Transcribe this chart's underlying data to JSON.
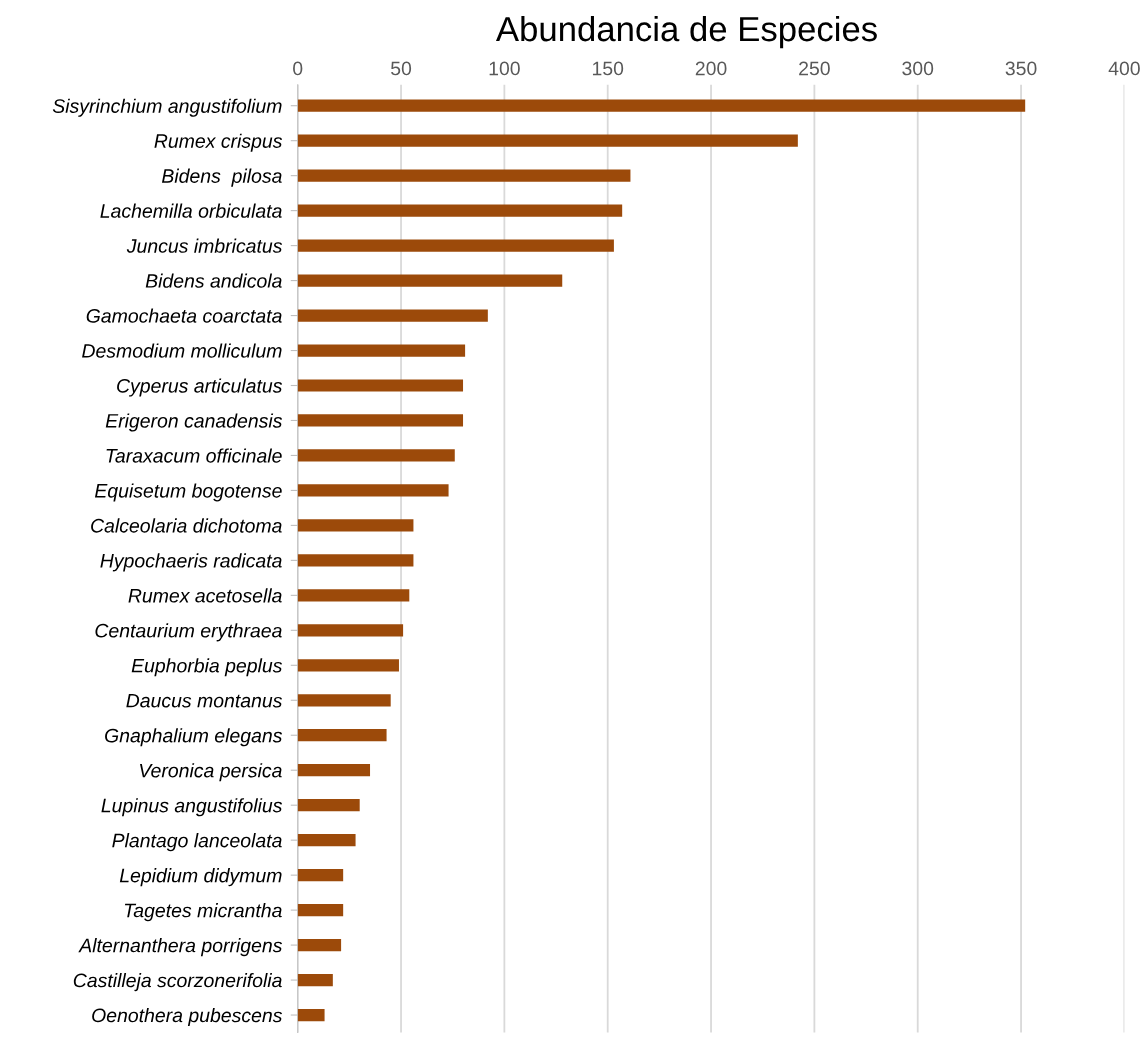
{
  "chart_data": {
    "type": "bar",
    "orientation": "horizontal",
    "title": "Abundancia de Especies",
    "categories": [
      "Sisyrinchium angustifolium",
      "Rumex crispus",
      "Bidens  pilosa",
      "Lachemilla orbiculata",
      "Juncus imbricatus",
      "Bidens andicola",
      "Gamochaeta coarctata",
      "Desmodium molliculum",
      "Cyperus articulatus",
      "Erigeron canadensis",
      "Taraxacum officinale",
      "Equisetum bogotense",
      "Calceolaria dichotoma",
      "Hypochaeris radicata",
      "Rumex acetosella",
      "Centaurium erythraea",
      "Euphorbia peplus",
      "Daucus montanus",
      "Gnaphalium elegans",
      "Veronica persica",
      "Lupinus angustifolius",
      "Plantago lanceolata",
      "Lepidium didymum",
      "Tagetes micrantha",
      "Alternanthera porrigens",
      "Castilleja scorzonerifolia",
      "Oenothera pubescens"
    ],
    "values": [
      352,
      242,
      161,
      157,
      153,
      128,
      92,
      81,
      80,
      80,
      76,
      73,
      56,
      56,
      54,
      51,
      49,
      45,
      43,
      35,
      30,
      28,
      22,
      22,
      21,
      17,
      13
    ],
    "color": "#9c4a0a",
    "xlim": [
      0,
      400
    ],
    "xticks": [
      0,
      50,
      100,
      150,
      200,
      250,
      300,
      350,
      400
    ],
    "grid": "x",
    "legend": false
  }
}
